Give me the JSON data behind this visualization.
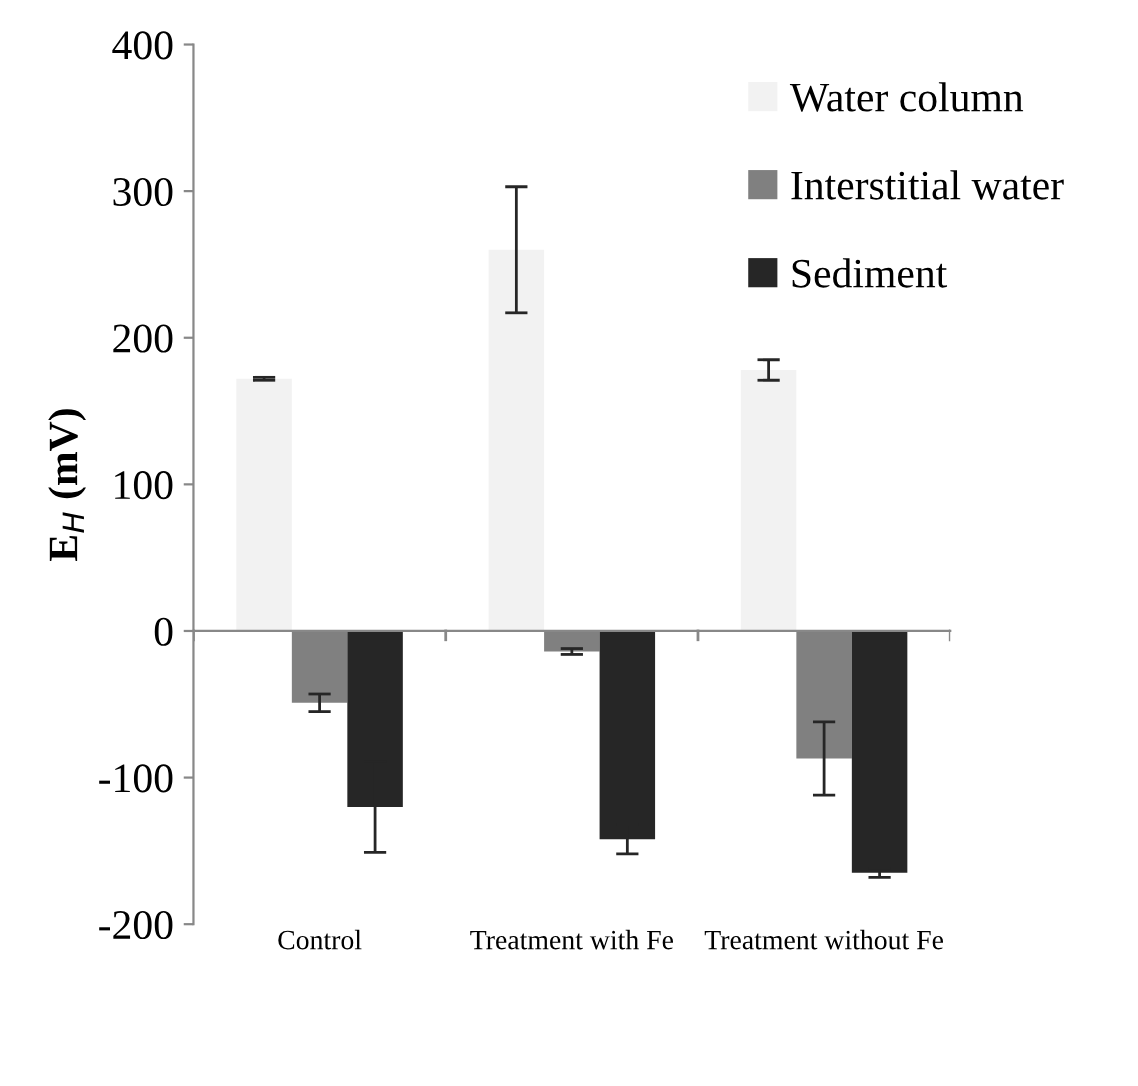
{
  "chart_data": {
    "type": "bar",
    "ylabel": "E$_{H}$ (mV)",
    "categories": [
      "Control",
      "Treatment with Fe",
      "Treatment without Fe"
    ],
    "series": [
      {
        "name": "Water column",
        "color": "#f2f2f2",
        "values": [
          172,
          260,
          178
        ],
        "errors": [
          1,
          43,
          7
        ]
      },
      {
        "name": "Interstitial water",
        "color": "#808080",
        "values": [
          -49,
          -14,
          -87
        ],
        "errors": [
          6,
          2,
          25
        ]
      },
      {
        "name": "Sediment",
        "color": "#262626",
        "values": [
          -120,
          -142,
          -165
        ],
        "errors": [
          31,
          10,
          3
        ]
      }
    ],
    "ylim": [
      -200,
      400
    ],
    "yticks": [
      -200,
      -100,
      0,
      100,
      200,
      300,
      400
    ],
    "legend": "top right"
  }
}
